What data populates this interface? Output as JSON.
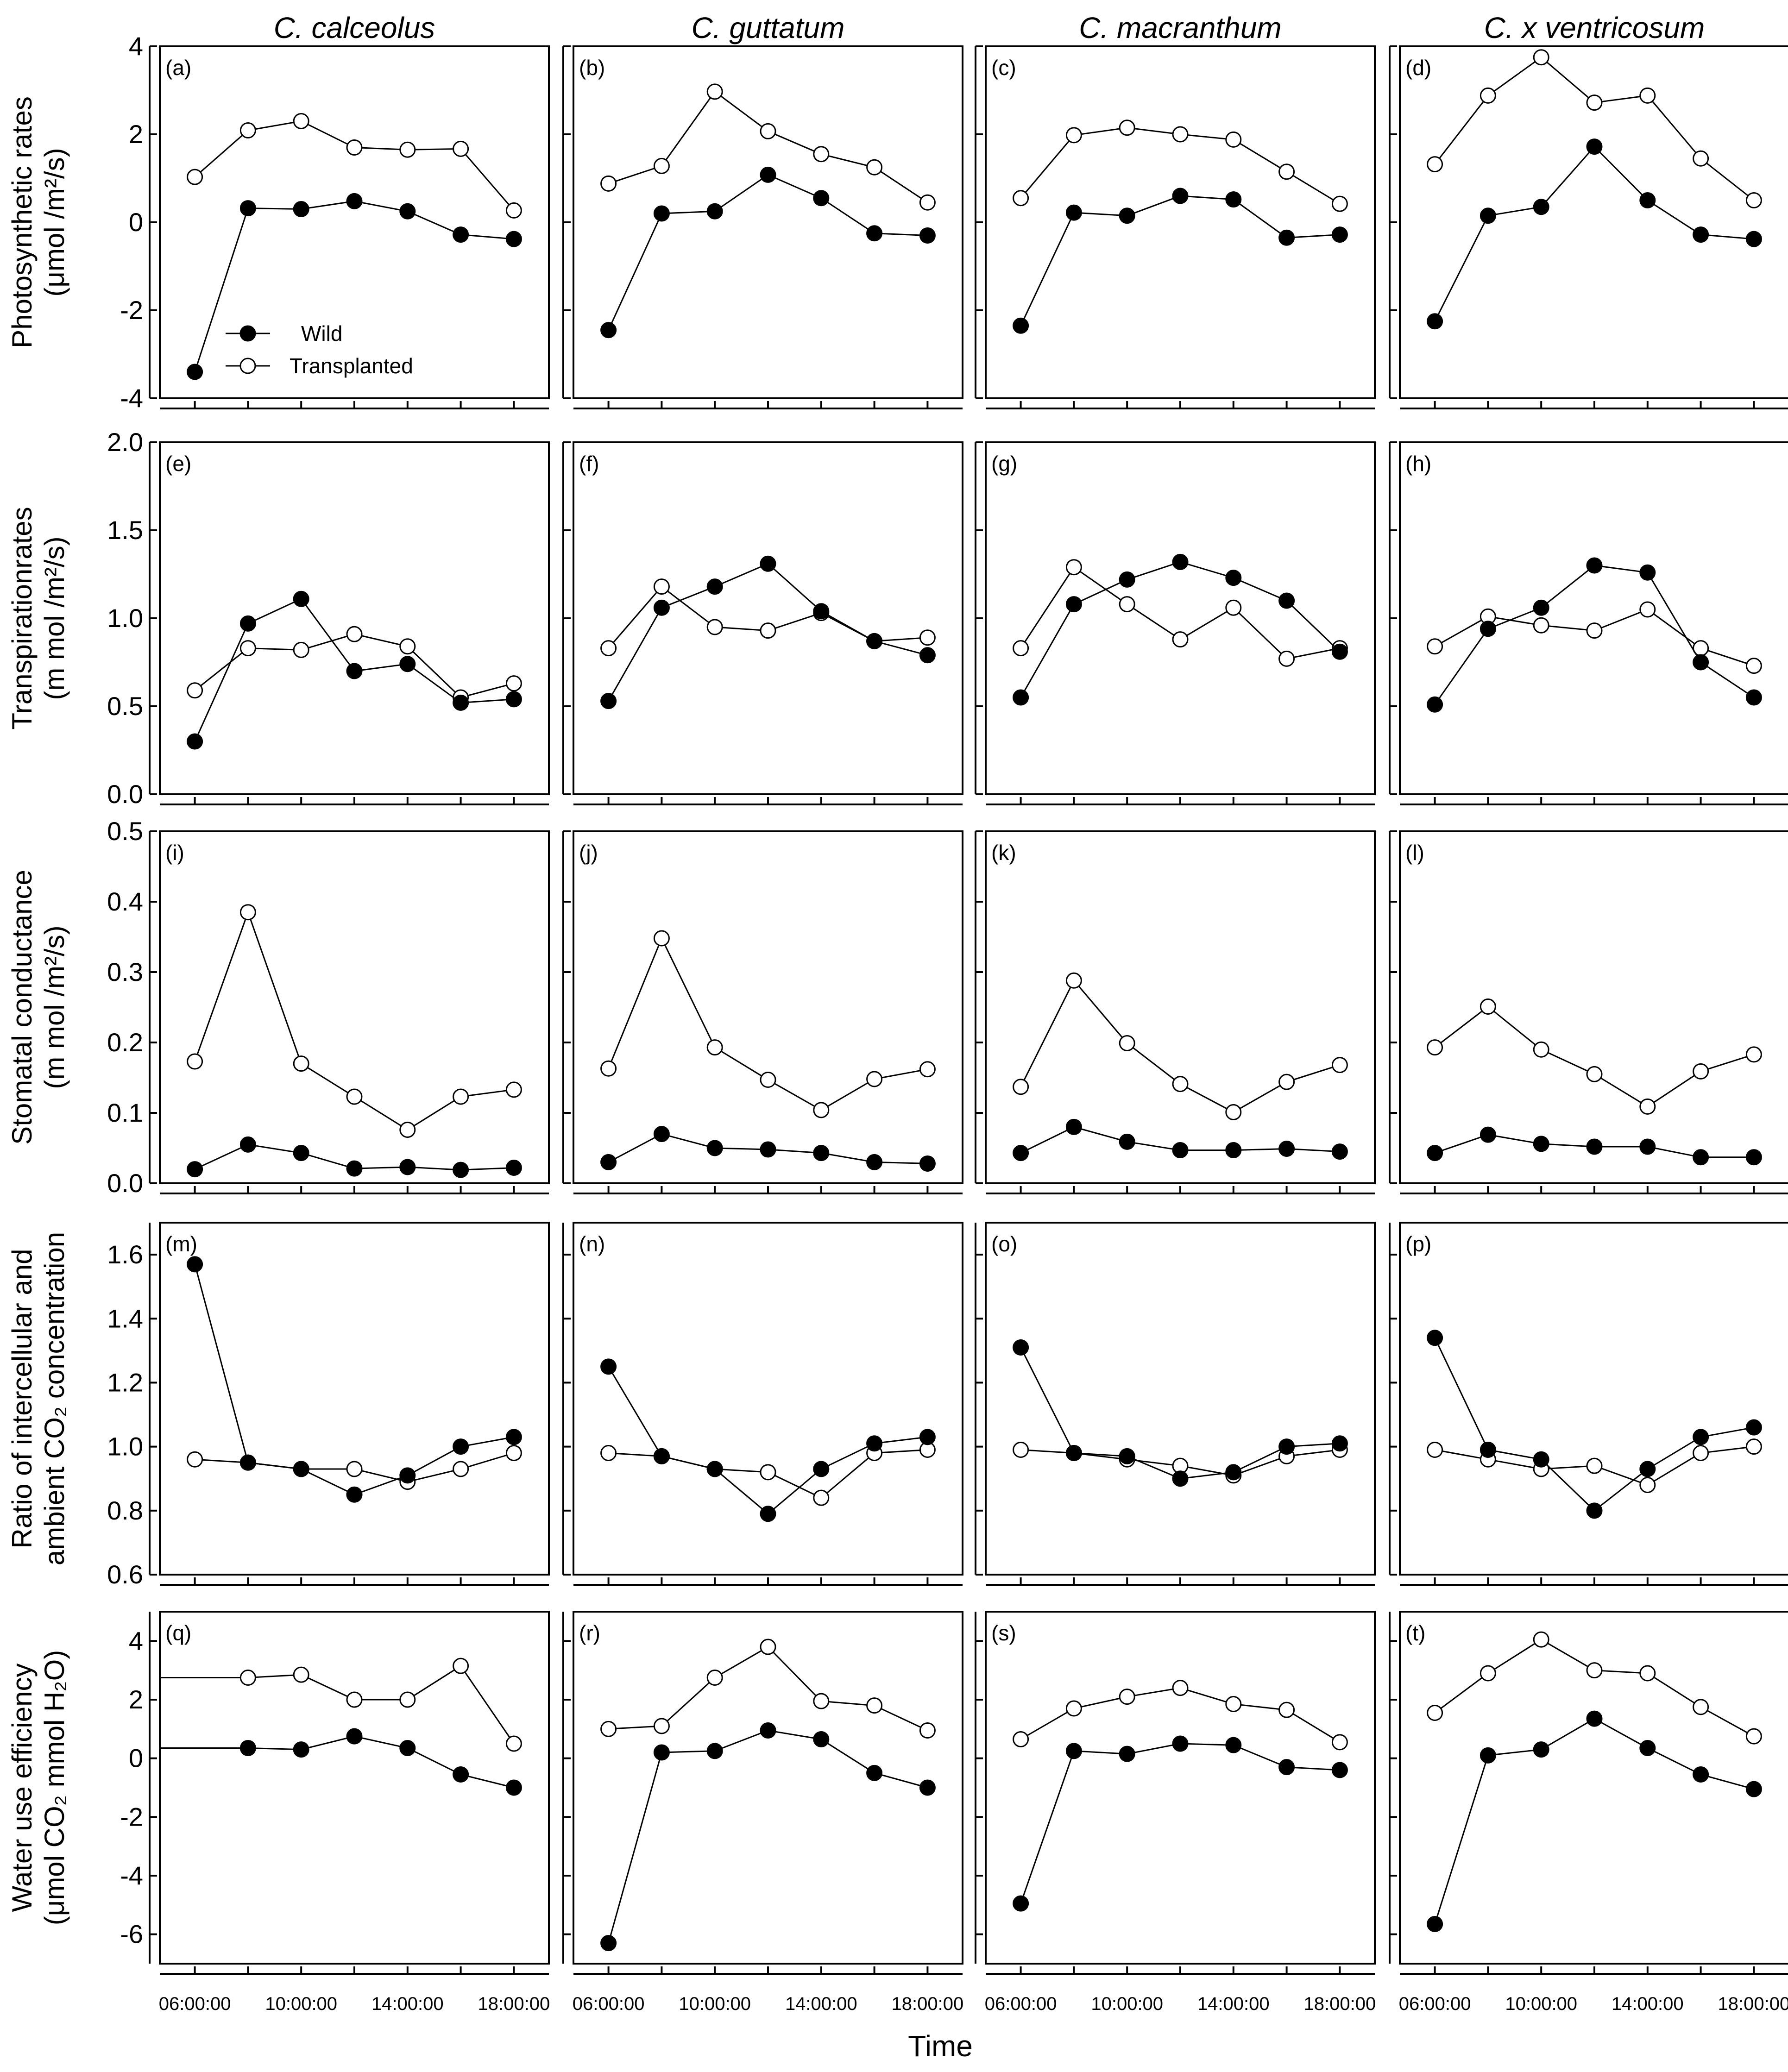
{
  "chart_data": {
    "type": "line",
    "xlabel": "Time",
    "x_tick_labels": [
      "06:00:00",
      "10:00:00",
      "14:00:00",
      "18:00:00"
    ],
    "x": [
      6,
      8,
      10,
      12,
      14,
      16,
      18
    ],
    "legend": {
      "wild": "Wild",
      "transplanted": "Transplanted",
      "placement": "inside panel (a), lower-left"
    },
    "species": [
      "C. calceolus",
      "C. guttatum",
      "C. macranthum",
      "C. x ventricosum"
    ],
    "rows": [
      {
        "ylabel_lines": [
          "Photosynthetic rates",
          "(μmol /m²/s)"
        ],
        "ylim": [
          -4,
          4
        ],
        "yticks": [
          -4,
          -2,
          0,
          2,
          4
        ],
        "ytick_labels": [
          "-4",
          "-2",
          "0",
          "2",
          "4"
        ],
        "panels": [
          {
            "label": "(a)",
            "wild": [
              -3.4,
              0.32,
              0.3,
              0.48,
              0.25,
              -0.28,
              -0.38
            ],
            "transplanted": [
              1.03,
              2.09,
              2.3,
              1.7,
              1.65,
              1.67,
              0.27
            ]
          },
          {
            "label": "(b)",
            "wild": [
              -2.45,
              0.2,
              0.25,
              1.08,
              0.55,
              -0.25,
              -0.3
            ],
            "transplanted": [
              0.88,
              1.28,
              2.97,
              2.07,
              1.55,
              1.25,
              0.45
            ]
          },
          {
            "label": "(c)",
            "wild": [
              -2.35,
              0.22,
              0.15,
              0.6,
              0.52,
              -0.35,
              -0.28
            ],
            "transplanted": [
              0.55,
              1.98,
              2.15,
              2.0,
              1.88,
              1.15,
              0.42
            ]
          },
          {
            "label": "(d)",
            "wild": [
              -2.25,
              0.15,
              0.35,
              1.72,
              0.5,
              -0.28,
              -0.38
            ],
            "transplanted": [
              1.32,
              2.88,
              3.75,
              2.72,
              2.88,
              1.45,
              0.5
            ]
          }
        ]
      },
      {
        "ylabel_lines": [
          "Transpirationrates",
          "(m mol /m²/s)"
        ],
        "ylim": [
          0,
          2
        ],
        "yticks": [
          0,
          0.5,
          1,
          1.5,
          2
        ],
        "ytick_labels": [
          "0.0",
          "0.5",
          "1.0",
          "1.5",
          "2.0"
        ],
        "panels": [
          {
            "label": "(e)",
            "wild": [
              0.3,
              0.97,
              1.11,
              0.7,
              0.74,
              0.52,
              0.54
            ],
            "transplanted": [
              0.59,
              0.83,
              0.82,
              0.91,
              0.84,
              0.55,
              0.63
            ]
          },
          {
            "label": "(f)",
            "wild": [
              0.53,
              1.06,
              1.18,
              1.31,
              1.04,
              0.87,
              0.79
            ],
            "transplanted": [
              0.83,
              1.18,
              0.95,
              0.93,
              1.03,
              0.87,
              0.89
            ]
          },
          {
            "label": "(g)",
            "wild": [
              0.55,
              1.08,
              1.22,
              1.32,
              1.23,
              1.1,
              0.81
            ],
            "transplanted": [
              0.83,
              1.29,
              1.08,
              0.88,
              1.06,
              0.77,
              0.83
            ]
          },
          {
            "label": "(h)",
            "wild": [
              0.51,
              0.94,
              1.06,
              1.3,
              1.26,
              0.75,
              0.55
            ],
            "transplanted": [
              0.84,
              1.01,
              0.96,
              0.93,
              1.05,
              0.83,
              0.73
            ]
          }
        ]
      },
      {
        "ylabel_lines": [
          "Stomatal conductance",
          "(m mol /m²/s)"
        ],
        "ylim": [
          0,
          0.5
        ],
        "yticks": [
          0,
          0.1,
          0.2,
          0.3,
          0.4,
          0.5
        ],
        "ytick_labels": [
          "0.0",
          "0.1",
          "0.2",
          "0.3",
          "0.4",
          "0.5"
        ],
        "panels": [
          {
            "label": "(i)",
            "wild": [
              0.02,
              0.055,
              0.043,
              0.021,
              0.023,
              0.019,
              0.022
            ],
            "transplanted": [
              0.173,
              0.385,
              0.17,
              0.123,
              0.076,
              0.123,
              0.133
            ]
          },
          {
            "label": "(j)",
            "wild": [
              0.03,
              0.07,
              0.05,
              0.048,
              0.043,
              0.03,
              0.028
            ],
            "transplanted": [
              0.163,
              0.348,
              0.193,
              0.147,
              0.104,
              0.148,
              0.162
            ]
          },
          {
            "label": "(k)",
            "wild": [
              0.043,
              0.08,
              0.059,
              0.047,
              0.047,
              0.049,
              0.045
            ],
            "transplanted": [
              0.137,
              0.288,
              0.199,
              0.141,
              0.101,
              0.144,
              0.168
            ]
          },
          {
            "label": "(l)",
            "wild": [
              0.043,
              0.069,
              0.056,
              0.052,
              0.052,
              0.037,
              0.037
            ],
            "transplanted": [
              0.193,
              0.251,
              0.19,
              0.155,
              0.109,
              0.159,
              0.183
            ]
          }
        ]
      },
      {
        "ylabel_lines": [
          "Ratio of intercellular and",
          "ambient CO₂ concentration"
        ],
        "ylim": [
          0.6,
          1.7
        ],
        "yticks": [
          0.6,
          0.8,
          1,
          1.2,
          1.4,
          1.6
        ],
        "ytick_labels": [
          "0.6",
          "0.8",
          "1.0",
          "1.2",
          "1.4",
          "1.6"
        ],
        "panels": [
          {
            "label": "(m)",
            "wild": [
              1.57,
              0.95,
              0.93,
              0.85,
              0.91,
              1.0,
              1.03
            ],
            "transplanted": [
              0.96,
              0.95,
              0.93,
              0.93,
              0.89,
              0.93,
              0.98
            ]
          },
          {
            "label": "(n)",
            "wild": [
              1.25,
              0.97,
              0.93,
              0.79,
              0.93,
              1.01,
              1.03
            ],
            "transplanted": [
              0.98,
              0.97,
              0.93,
              0.92,
              0.84,
              0.98,
              0.99
            ]
          },
          {
            "label": "(o)",
            "wild": [
              1.31,
              0.98,
              0.97,
              0.9,
              0.92,
              1.0,
              1.01
            ],
            "transplanted": [
              0.99,
              0.98,
              0.96,
              0.94,
              0.91,
              0.97,
              0.99
            ]
          },
          {
            "label": "(p)",
            "wild": [
              1.34,
              0.99,
              0.96,
              0.8,
              0.93,
              1.03,
              1.06
            ],
            "transplanted": [
              0.99,
              0.96,
              0.93,
              0.94,
              0.88,
              0.98,
              1.0
            ]
          }
        ]
      },
      {
        "ylabel_lines": [
          "Water use efficiency",
          "(μmol CO₂ mmol H₂O)"
        ],
        "ylim": [
          -7,
          5
        ],
        "yticks": [
          -6,
          -4,
          -2,
          0,
          2,
          4
        ],
        "ytick_labels": [
          "-6",
          "-4",
          "-2",
          "0",
          "2",
          "4"
        ],
        "panels": [
          {
            "label": "(q)",
            "wild": [
              0.35,
              0.35,
              0.3,
              0.75,
              0.35,
              -0.55,
              -1.0
            ],
            "transplanted": [
              2.75,
              2.75,
              2.85,
              2.0,
              2.0,
              3.15,
              0.5
            ],
            "first_point_hidden": true
          },
          {
            "label": "(r)",
            "wild": [
              -6.3,
              0.2,
              0.25,
              0.95,
              0.65,
              -0.5,
              -1.0
            ],
            "transplanted": [
              1.0,
              1.1,
              2.75,
              3.8,
              1.95,
              1.8,
              0.95
            ]
          },
          {
            "label": "(s)",
            "wild": [
              -4.95,
              0.25,
              0.15,
              0.5,
              0.45,
              -0.3,
              -0.4
            ],
            "transplanted": [
              0.65,
              1.7,
              2.1,
              2.4,
              1.85,
              1.65,
              0.55
            ]
          },
          {
            "label": "(t)",
            "wild": [
              -5.65,
              0.1,
              0.3,
              1.35,
              0.35,
              -0.55,
              -1.05
            ],
            "transplanted": [
              1.55,
              2.9,
              4.05,
              3.0,
              2.9,
              1.75,
              0.75
            ]
          }
        ]
      }
    ]
  }
}
